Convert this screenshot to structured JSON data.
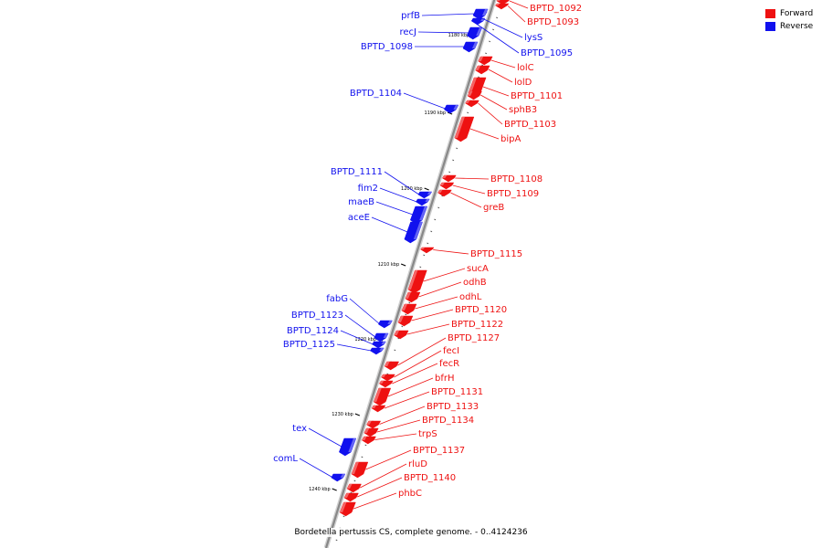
{
  "legend": {
    "items": [
      {
        "label": "Forward",
        "color": "#ee1111"
      },
      {
        "label": "Reverse",
        "color": "#1111ee"
      }
    ]
  },
  "caption": "Bordetella pertussis CS, complete genome. - 0..4124236",
  "colors": {
    "forward": "#ee1111",
    "reverse": "#1111ee",
    "backbone": "#888888"
  },
  "ticks": [
    "1180 kbp",
    "1190 kbp",
    "1200 kbp",
    "1210 kbp",
    "1220 kbp",
    "1230 kbp",
    "1240 kbp"
  ],
  "genes": [
    {
      "name": "BPTD_1092",
      "strand": "forward"
    },
    {
      "name": "BPTD_1093",
      "strand": "forward"
    },
    {
      "name": "lysS",
      "strand": "reverse"
    },
    {
      "name": "BPTD_1095",
      "strand": "reverse"
    },
    {
      "name": "prfB",
      "strand": "reverse"
    },
    {
      "name": "recJ",
      "strand": "reverse"
    },
    {
      "name": "BPTD_1098",
      "strand": "reverse"
    },
    {
      "name": "lolC",
      "strand": "forward"
    },
    {
      "name": "lolD",
      "strand": "forward"
    },
    {
      "name": "BPTD_1101",
      "strand": "forward"
    },
    {
      "name": "sphB3",
      "strand": "forward"
    },
    {
      "name": "BPTD_1103",
      "strand": "forward"
    },
    {
      "name": "BPTD_1104",
      "strand": "reverse"
    },
    {
      "name": "bipA",
      "strand": "forward"
    },
    {
      "name": "BPTD_1108",
      "strand": "forward"
    },
    {
      "name": "BPTD_1109",
      "strand": "forward"
    },
    {
      "name": "greB",
      "strand": "forward"
    },
    {
      "name": "BPTD_1111",
      "strand": "reverse"
    },
    {
      "name": "fim2",
      "strand": "reverse"
    },
    {
      "name": "maeB",
      "strand": "reverse"
    },
    {
      "name": "aceE",
      "strand": "reverse"
    },
    {
      "name": "BPTD_1115",
      "strand": "forward"
    },
    {
      "name": "sucA",
      "strand": "forward"
    },
    {
      "name": "odhB",
      "strand": "forward"
    },
    {
      "name": "odhL",
      "strand": "forward"
    },
    {
      "name": "BPTD_1120",
      "strand": "forward"
    },
    {
      "name": "BPTD_1122",
      "strand": "forward"
    },
    {
      "name": "BPTD_1127",
      "strand": "forward"
    },
    {
      "name": "fabG",
      "strand": "reverse"
    },
    {
      "name": "BPTD_1123",
      "strand": "reverse"
    },
    {
      "name": "BPTD_1124",
      "strand": "reverse"
    },
    {
      "name": "BPTD_1125",
      "strand": "reverse"
    },
    {
      "name": "fecI",
      "strand": "forward"
    },
    {
      "name": "fecR",
      "strand": "forward"
    },
    {
      "name": "bfrH",
      "strand": "forward"
    },
    {
      "name": "BPTD_1131",
      "strand": "forward"
    },
    {
      "name": "BPTD_1133",
      "strand": "forward"
    },
    {
      "name": "BPTD_1134",
      "strand": "forward"
    },
    {
      "name": "trpS",
      "strand": "forward"
    },
    {
      "name": "tex",
      "strand": "reverse"
    },
    {
      "name": "comL",
      "strand": "reverse"
    },
    {
      "name": "BPTD_1137",
      "strand": "forward"
    },
    {
      "name": "rluD",
      "strand": "forward"
    },
    {
      "name": "BPTD_1140",
      "strand": "forward"
    },
    {
      "name": "phbC",
      "strand": "forward"
    }
  ]
}
